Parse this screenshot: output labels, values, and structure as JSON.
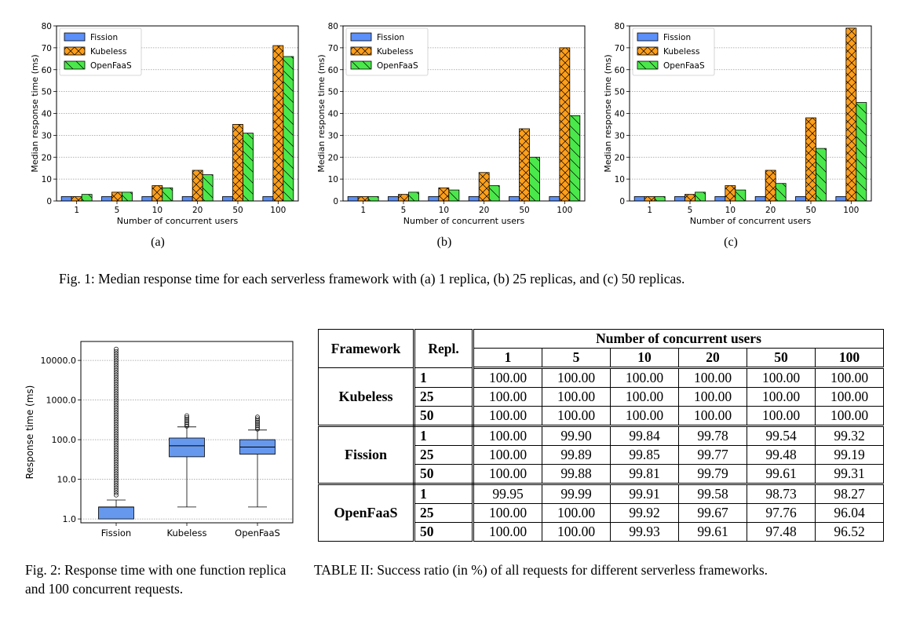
{
  "colors": {
    "fission": "#5b8ff9",
    "kubeless": "#ff9e1a",
    "openfaas": "#4be84b",
    "edge": "#000000",
    "box": "#6699ee"
  },
  "chart_data": [
    {
      "id": "fig1a",
      "type": "bar",
      "categories": [
        "1",
        "5",
        "10",
        "20",
        "50",
        "100"
      ],
      "series": [
        {
          "name": "Fission",
          "values": [
            2,
            2,
            2,
            2,
            2,
            2
          ]
        },
        {
          "name": "Kubeless",
          "values": [
            2,
            4,
            7,
            14,
            35,
            71
          ]
        },
        {
          "name": "OpenFaaS",
          "values": [
            3,
            4,
            6,
            12,
            31,
            66
          ]
        }
      ],
      "xlabel": "Number of concurrent users",
      "ylabel": "Median response time (ms)",
      "ylim": [
        0,
        80
      ],
      "yticks": [
        0,
        10,
        20,
        30,
        40,
        50,
        60,
        70,
        80
      ],
      "grid": true,
      "legend": "top-left",
      "sublabel": "(a)"
    },
    {
      "id": "fig1b",
      "type": "bar",
      "categories": [
        "1",
        "5",
        "10",
        "20",
        "50",
        "100"
      ],
      "series": [
        {
          "name": "Fission",
          "values": [
            2,
            2,
            2,
            2,
            2,
            2
          ]
        },
        {
          "name": "Kubeless",
          "values": [
            2,
            3,
            6,
            13,
            33,
            70
          ]
        },
        {
          "name": "OpenFaaS",
          "values": [
            2,
            4,
            5,
            7,
            20,
            39
          ]
        }
      ],
      "xlabel": "Number of concurrent users",
      "ylabel": "Median response time (ms)",
      "ylim": [
        0,
        80
      ],
      "yticks": [
        0,
        10,
        20,
        30,
        40,
        50,
        60,
        70,
        80
      ],
      "grid": true,
      "legend": "top-left",
      "sublabel": "(b)"
    },
    {
      "id": "fig1c",
      "type": "bar",
      "categories": [
        "1",
        "5",
        "10",
        "20",
        "50",
        "100"
      ],
      "series": [
        {
          "name": "Fission",
          "values": [
            2,
            2,
            2,
            2,
            2,
            2
          ]
        },
        {
          "name": "Kubeless",
          "values": [
            2,
            3,
            7,
            14,
            38,
            79
          ]
        },
        {
          "name": "OpenFaaS",
          "values": [
            2,
            4,
            5,
            8,
            24,
            45
          ]
        }
      ],
      "xlabel": "Number of concurrent users",
      "ylabel": "Median response time (ms)",
      "ylim": [
        0,
        80
      ],
      "yticks": [
        0,
        10,
        20,
        30,
        40,
        50,
        60,
        70,
        80
      ],
      "grid": true,
      "legend": "top-left",
      "sublabel": "(c)"
    },
    {
      "id": "fig2",
      "type": "box",
      "scale": "log",
      "categories": [
        "Fission",
        "Kubeless",
        "OpenFaaS"
      ],
      "ylabel": "Response time (ms)",
      "yticks": [
        "1.0",
        "10.0",
        "100.0",
        "1000.0",
        "10000.0"
      ],
      "ylim": [
        0.8,
        30000
      ],
      "boxes": [
        {
          "name": "Fission",
          "whisker_low": 1,
          "q1": 1,
          "median": 2,
          "q3": 2,
          "whisker_high": 3,
          "outliers_low": 4,
          "outliers_high": 20000
        },
        {
          "name": "Kubeless",
          "whisker_low": 2,
          "q1": 37,
          "median": 70,
          "q3": 110,
          "whisker_high": 210,
          "outliers_low": 220,
          "outliers_high": 430
        },
        {
          "name": "OpenFaaS",
          "whisker_low": 2,
          "q1": 43,
          "median": 65,
          "q3": 100,
          "whisker_high": 175,
          "outliers_low": 185,
          "outliers_high": 400
        }
      ],
      "grid": true
    }
  ],
  "captions": {
    "fig1": "Fig. 1: Median response time for each serverless framework with (a) 1 replica, (b) 25 replicas, and (c) 50 replicas.",
    "fig2": "Fig. 2: Response time with one function replica and 100 concurrent requests.",
    "table": "TABLE II: Success ratio (in %) of all requests for different serverless frameworks."
  },
  "table": {
    "header_framework": "Framework",
    "header_repl": "Repl.",
    "header_group": "Number of concurrent users",
    "user_columns": [
      "1",
      "5",
      "10",
      "20",
      "50",
      "100"
    ],
    "groups": [
      {
        "framework": "Kubeless",
        "rows": [
          {
            "repl": "1",
            "values": [
              "100.00",
              "100.00",
              "100.00",
              "100.00",
              "100.00",
              "100.00"
            ]
          },
          {
            "repl": "25",
            "values": [
              "100.00",
              "100.00",
              "100.00",
              "100.00",
              "100.00",
              "100.00"
            ]
          },
          {
            "repl": "50",
            "values": [
              "100.00",
              "100.00",
              "100.00",
              "100.00",
              "100.00",
              "100.00"
            ]
          }
        ]
      },
      {
        "framework": "Fission",
        "rows": [
          {
            "repl": "1",
            "values": [
              "100.00",
              "99.90",
              "99.84",
              "99.78",
              "99.54",
              "99.32"
            ]
          },
          {
            "repl": "25",
            "values": [
              "100.00",
              "99.89",
              "99.85",
              "99.77",
              "99.48",
              "99.19"
            ]
          },
          {
            "repl": "50",
            "values": [
              "100.00",
              "99.88",
              "99.81",
              "99.79",
              "99.61",
              "99.31"
            ]
          }
        ]
      },
      {
        "framework": "OpenFaaS",
        "rows": [
          {
            "repl": "1",
            "values": [
              "99.95",
              "99.99",
              "99.91",
              "99.58",
              "98.73",
              "98.27"
            ]
          },
          {
            "repl": "25",
            "values": [
              "100.00",
              "100.00",
              "99.92",
              "99.67",
              "97.76",
              "96.04"
            ]
          },
          {
            "repl": "50",
            "values": [
              "100.00",
              "100.00",
              "99.93",
              "99.61",
              "97.48",
              "96.52"
            ]
          }
        ]
      }
    ]
  }
}
